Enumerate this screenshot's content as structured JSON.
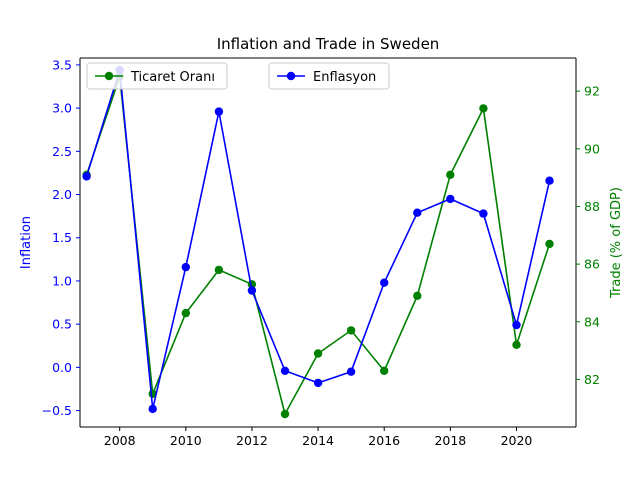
{
  "chart_data": {
    "type": "line",
    "title": "Inflation and Trade in Sweden",
    "x": [
      2007,
      2008,
      2009,
      2010,
      2011,
      2012,
      2013,
      2014,
      2015,
      2016,
      2017,
      2018,
      2019,
      2020,
      2021
    ],
    "xlim": [
      2006.8,
      2021.8
    ],
    "xticks": [
      2008,
      2010,
      2012,
      2014,
      2016,
      2018,
      2020
    ],
    "axes": {
      "left": {
        "label": "Inflation",
        "color": "#0000ff",
        "ylim": [
          -0.69,
          3.58
        ],
        "ticks": [
          -0.5,
          0.0,
          0.5,
          1.0,
          1.5,
          2.0,
          2.5,
          3.0,
          3.5
        ],
        "tick_labels": [
          "−0.5",
          "0.0",
          "0.5",
          "1.0",
          "1.5",
          "2.0",
          "2.5",
          "3.0",
          "3.5"
        ]
      },
      "right": {
        "label": "Trade (% of GDP)",
        "color": "#008000",
        "ylim": [
          80.35,
          93.15
        ],
        "ticks": [
          82,
          84,
          86,
          88,
          90,
          92
        ],
        "tick_labels": [
          "82",
          "84",
          "86",
          "88",
          "90",
          "92"
        ]
      }
    },
    "series": [
      {
        "name": "Enflasyon",
        "axis": "left",
        "color": "#0000ff",
        "values": [
          2.21,
          3.44,
          -0.48,
          1.16,
          2.96,
          0.89,
          -0.04,
          -0.18,
          -0.05,
          0.98,
          1.79,
          1.95,
          1.78,
          0.49,
          2.16
        ]
      },
      {
        "name": "Ticaret Oranı",
        "axis": "right",
        "color": "#008000",
        "values": [
          89.1,
          92.5,
          81.5,
          84.3,
          85.8,
          85.3,
          80.8,
          82.9,
          83.7,
          82.3,
          84.9,
          89.1,
          91.4,
          83.2,
          86.7
        ]
      }
    ],
    "legend": [
      "top-left",
      "top-center"
    ],
    "grid": false
  }
}
